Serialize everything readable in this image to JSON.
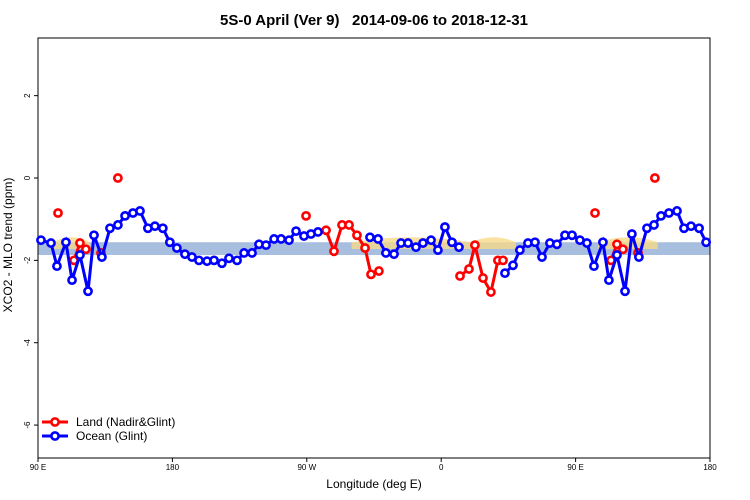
{
  "chart_data": {
    "type": "line",
    "title": "5S-0 April (Ver 9)   2014-09-06 to 2018-12-31",
    "xlabel": "Longitude (deg E)",
    "ylabel": "XCO2 - MLO trend (ppm)",
    "xlim": [
      90,
      540
    ],
    "ylim": [
      -6.8,
      3.4
    ],
    "xticks": [
      {
        "value": 90,
        "label": "90 E"
      },
      {
        "value": 180,
        "label": "180"
      },
      {
        "value": 270,
        "label": "90 W"
      },
      {
        "value": 360,
        "label": "0"
      },
      {
        "value": 450,
        "label": "90 E"
      },
      {
        "value": 540,
        "label": "180"
      }
    ],
    "yticks": [
      -6,
      -4,
      -2,
      0,
      2
    ],
    "band": [
      -1.87,
      -1.56
    ],
    "band_color": "#a7bedf",
    "legend": "bottom-left",
    "series": [
      {
        "name": "Land (Nadir&Glint)",
        "color": "#ff0000",
        "x": [
          103.4,
          null,
          114.1,
          118.1,
          122.1,
          null,
          132.2,
          null,
          143.5,
          null,
          269.5,
          null,
          282.9,
          288.2,
          293.6,
          298.3,
          303.6,
          309,
          313,
          318.3,
          null,
          372.6,
          378.6,
          382.6,
          388,
          393.3,
          398,
          401.4,
          null,
          463,
          null,
          473.7,
          477.7,
          481.7,
          null,
          491.8,
          null,
          503.1
        ],
        "values": [
          -0.85,
          null,
          -2.0,
          -1.58,
          -1.73,
          null,
          -1.82,
          null,
          0.0,
          null,
          -0.92,
          null,
          -1.27,
          -1.78,
          -1.14,
          -1.14,
          -1.39,
          -1.7,
          -2.34,
          -2.26,
          null,
          -2.38,
          -2.21,
          -1.63,
          -2.43,
          -2.77,
          -2.0,
          -2.0,
          null,
          -0.85,
          null,
          -2.0,
          -1.61,
          -1.73,
          null,
          -1.82,
          null,
          0.0
        ]
      },
      {
        "name": "Ocean (Glint)",
        "color": "#0000ff",
        "x": [
          92,
          98.7,
          102.7,
          108.7,
          112.8,
          118.1,
          123.5,
          127.5,
          132.8,
          138.2,
          143.5,
          148.3,
          153.6,
          158.3,
          163.6,
          168.3,
          173.6,
          178.3,
          183,
          188.4,
          193.1,
          197.8,
          203.2,
          207.9,
          213.2,
          217.9,
          223.3,
          228,
          233.3,
          238,
          242.7,
          248.1,
          252.8,
          258.1,
          262.8,
          268.1,
          272.8,
          277.5,
          null,
          312.3,
          317.7,
          323,
          328.4,
          333.1,
          337.8,
          343.1,
          347.8,
          353.2,
          357.8,
          362.5,
          367.2,
          371.9,
          null,
          402.7,
          408.1,
          412.7,
          418.1,
          422.8,
          427.5,
          432.8,
          437.5,
          442.9,
          447.6,
          452.9,
          457.6,
          462.3,
          468.3,
          472.3,
          477.7,
          483.1,
          487.7,
          492.4,
          497.8,
          502.5,
          507.2,
          512.5,
          517.9,
          522.6,
          527.3,
          532.7,
          537.4
        ],
        "values": [
          -1.51,
          -1.58,
          -2.14,
          -1.56,
          -2.48,
          -1.87,
          -2.75,
          -1.39,
          -1.92,
          -1.22,
          -1.14,
          -0.92,
          -0.85,
          -0.8,
          -1.22,
          -1.17,
          -1.22,
          -1.56,
          -1.7,
          -1.85,
          -1.92,
          -2.0,
          -2.02,
          -2.0,
          -2.07,
          -1.95,
          -2.0,
          -1.82,
          -1.82,
          -1.61,
          -1.63,
          -1.48,
          -1.48,
          -1.51,
          -1.29,
          -1.41,
          -1.36,
          -1.31,
          null,
          -1.44,
          -1.48,
          -1.82,
          -1.85,
          -1.58,
          -1.58,
          -1.68,
          -1.58,
          -1.51,
          -1.75,
          -1.19,
          -1.56,
          -1.68,
          null,
          -2.31,
          -2.12,
          -1.75,
          -1.58,
          -1.56,
          -1.92,
          -1.58,
          -1.61,
          -1.39,
          -1.39,
          -1.51,
          -1.58,
          -2.14,
          -1.56,
          -2.48,
          -1.87,
          -2.75,
          -1.36,
          -1.92,
          -1.22,
          -1.14,
          -0.92,
          -0.85,
          -0.8,
          -1.22,
          -1.17,
          -1.22,
          -1.56
        ]
      }
    ]
  }
}
